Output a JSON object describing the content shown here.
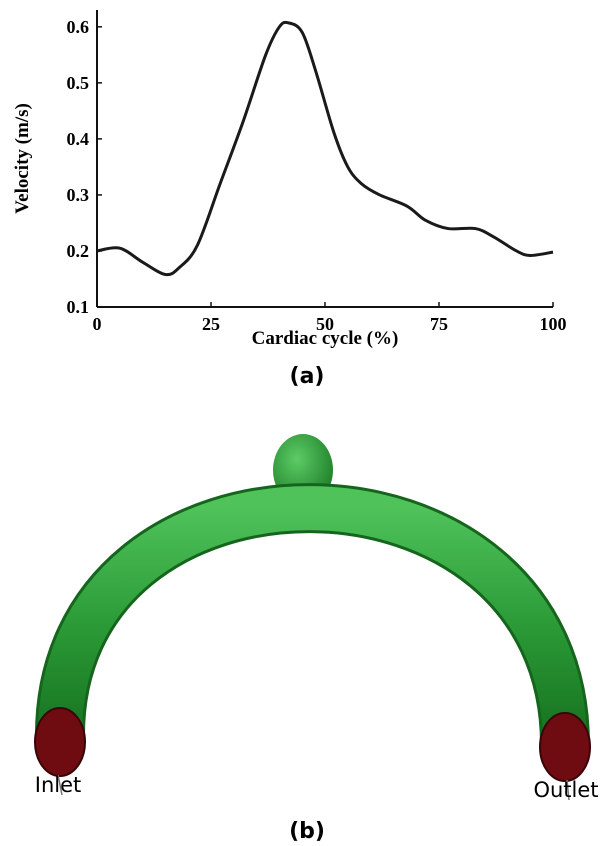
{
  "chart_data": {
    "type": "line",
    "panel_label": "(a)",
    "x_label": "Cardiac cycle (%)",
    "y_label": "Velocity (m/s)",
    "x": [
      0,
      5,
      10,
      15,
      18,
      22,
      27,
      32,
      37,
      40,
      42,
      45,
      48,
      52,
      55,
      58,
      62,
      68,
      72,
      77,
      83,
      87,
      92,
      95,
      100
    ],
    "series": [
      {
        "color": "#1a1a1a",
        "values": [
          0.2,
          0.205,
          0.18,
          0.158,
          0.17,
          0.21,
          0.32,
          0.43,
          0.55,
          0.6,
          0.607,
          0.59,
          0.52,
          0.41,
          0.35,
          0.32,
          0.3,
          0.28,
          0.255,
          0.24,
          0.24,
          0.225,
          0.2,
          0.192,
          0.198
        ]
      }
    ],
    "xlim": [
      0,
      100
    ],
    "xticks": [
      0,
      25,
      50,
      75,
      100
    ],
    "ylim": [
      0.1,
      0.63
    ],
    "yticks": [
      0.1,
      0.2,
      0.3,
      0.4,
      0.5,
      0.6
    ]
  },
  "figure_b": {
    "panel_label": "(b)",
    "inlet": "Inlet",
    "outlet": "Outlet"
  }
}
